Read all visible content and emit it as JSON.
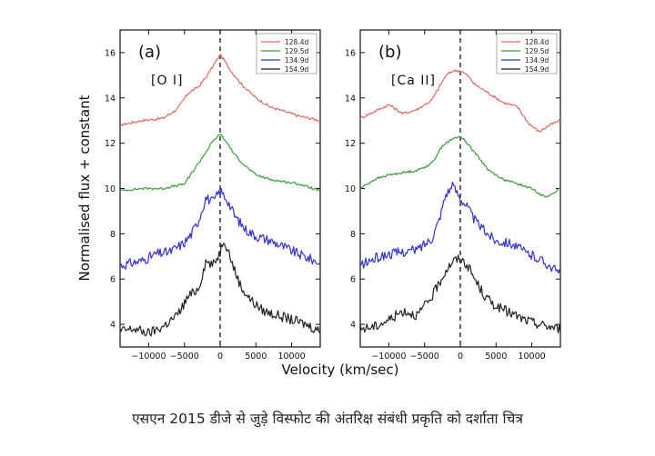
{
  "caption": "एसएन 2015 डीजे से जुड़े विस्फोट की अंतरिक्ष संबंधी प्रकृति को दर्शाता चित्र",
  "colors": {
    "128.4d": "#e06a6a",
    "129.5d": "#3d9a3d",
    "134.9d": "#3333cc",
    "154.9d": "#222222"
  },
  "chart_data": {
    "type": "line",
    "xlabel": "Velocity (km/sec)",
    "ylabel": "Normalised flux + constant",
    "xlim": [
      -14000,
      14000
    ],
    "ylim": [
      3,
      17
    ],
    "x_ticks": [
      -10000,
      -5000,
      0,
      5000,
      10000
    ],
    "x_tick_labels": [
      "−10000",
      "−5000",
      "0",
      "5000",
      "10000"
    ],
    "y_ticks": [
      4,
      6,
      8,
      10,
      12,
      14,
      16
    ],
    "y_tick_labels": [
      "4",
      "6",
      "8",
      "10",
      "12",
      "14",
      "16"
    ],
    "reference_line_x": 0,
    "legend": [
      "128.4d",
      "129.5d",
      "134.9d",
      "154.9d"
    ],
    "panels": [
      {
        "label": "(a)",
        "line": "[O I]",
        "series": [
          {
            "name": "128.4d",
            "x": [
              -14000,
              -11000,
              -8000,
              -6000,
              -4500,
              -3000,
              -2000,
              -1000,
              0,
              500,
              1500,
              3000,
              5000,
              7000,
              9000,
              11000,
              14000
            ],
            "y": [
              12.8,
              13.0,
              13.1,
              13.5,
              14.2,
              14.5,
              14.9,
              15.4,
              15.9,
              15.7,
              15.2,
              14.6,
              14.0,
              13.6,
              13.4,
              13.2,
              13.0
            ]
          },
          {
            "name": "129.5d",
            "x": [
              -14000,
              -11000,
              -8000,
              -5000,
              -3500,
              -2000,
              -1000,
              0,
              1000,
              2000,
              3500,
              5000,
              7000,
              9000,
              11000,
              14000
            ],
            "y": [
              9.9,
              10.0,
              10.0,
              10.2,
              10.9,
              11.6,
              12.1,
              12.4,
              12.0,
              11.5,
              11.0,
              10.6,
              10.4,
              10.3,
              10.2,
              9.9
            ]
          },
          {
            "name": "134.9d",
            "x": [
              -14000,
              -11000,
              -9000,
              -7000,
              -5000,
              -4000,
              -3000,
              -2000,
              -1000,
              0,
              1000,
              2000,
              3500,
              5000,
              7000,
              9000,
              11000,
              12500,
              14000
            ],
            "y": [
              6.6,
              6.8,
              7.1,
              7.2,
              7.6,
              8.0,
              8.6,
              9.6,
              9.4,
              9.9,
              9.5,
              8.8,
              8.2,
              7.9,
              7.7,
              7.4,
              7.1,
              6.9,
              6.7
            ]
          },
          {
            "name": "154.9d",
            "x": [
              -14000,
              -12000,
              -10000,
              -8000,
              -6000,
              -4500,
              -3000,
              -2000,
              -1000,
              0,
              500,
              1000,
              2000,
              3000,
              4500,
              6000,
              8000,
              10000,
              12000,
              14000
            ],
            "y": [
              3.7,
              3.8,
              3.6,
              3.9,
              4.4,
              5.2,
              5.6,
              6.8,
              6.6,
              7.2,
              7.8,
              7.4,
              6.4,
              5.6,
              5.0,
              4.6,
              4.4,
              4.2,
              4.0,
              3.7
            ]
          }
        ]
      },
      {
        "label": "(b)",
        "line": "[Ca II]",
        "series": [
          {
            "name": "128.4d",
            "x": [
              -14000,
              -12000,
              -10000,
              -8000,
              -6000,
              -4000,
              -2000,
              -1000,
              0,
              1000,
              2000,
              4000,
              6000,
              8000,
              9500,
              11000,
              12500,
              14000
            ],
            "y": [
              13.1,
              13.4,
              13.7,
              13.3,
              13.5,
              13.9,
              15.0,
              15.2,
              15.2,
              15.0,
              14.6,
              14.2,
              13.8,
              13.6,
              12.9,
              12.5,
              12.8,
              13.0
            ]
          },
          {
            "name": "129.5d",
            "x": [
              -14000,
              -12000,
              -10000,
              -8000,
              -6000,
              -4000,
              -2500,
              -1000,
              0,
              1000,
              2500,
              4000,
              6000,
              8000,
              10000,
              12000,
              14000
            ],
            "y": [
              10.0,
              10.4,
              10.6,
              10.7,
              10.8,
              11.1,
              11.9,
              12.2,
              12.3,
              12.0,
              11.4,
              10.8,
              10.4,
              10.2,
              10.0,
              9.6,
              10.0
            ]
          },
          {
            "name": "134.9d",
            "x": [
              -14000,
              -12000,
              -10000,
              -8000,
              -6000,
              -4000,
              -3000,
              -2000,
              -1000,
              0,
              1000,
              2000,
              3500,
              5000,
              7000,
              9000,
              11000,
              12500,
              14000
            ],
            "y": [
              6.6,
              6.9,
              7.1,
              7.2,
              7.3,
              7.8,
              8.6,
              9.8,
              10.1,
              9.6,
              9.2,
              8.6,
              8.1,
              7.7,
              7.6,
              7.2,
              6.9,
              6.6,
              6.2
            ]
          },
          {
            "name": "154.9d",
            "x": [
              -14000,
              -12000,
              -10000,
              -8000,
              -6000,
              -4000,
              -3000,
              -2000,
              -1000,
              0,
              1000,
              2000,
              3500,
              5000,
              7000,
              9000,
              11000,
              12500,
              14000
            ],
            "y": [
              3.8,
              3.9,
              4.2,
              4.6,
              4.4,
              5.2,
              5.8,
              6.4,
              6.8,
              6.9,
              6.6,
              6.0,
              5.2,
              4.8,
              4.5,
              4.2,
              4.0,
              3.9,
              3.8
            ]
          }
        ]
      }
    ]
  }
}
